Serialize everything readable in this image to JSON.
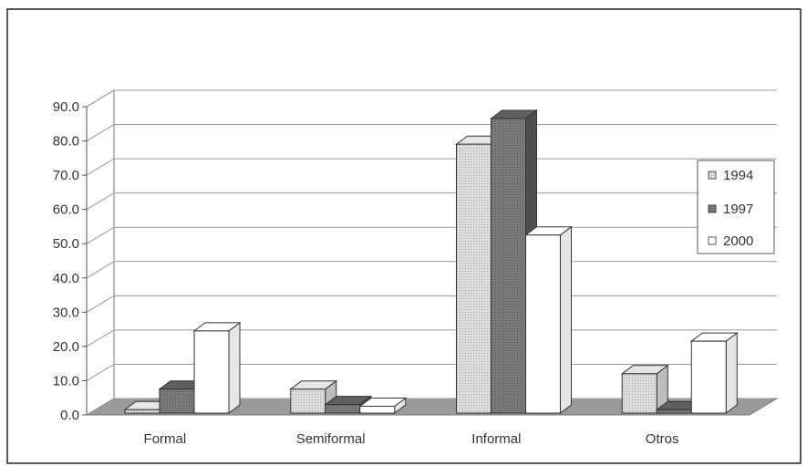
{
  "chart_data": {
    "type": "bar",
    "categories": [
      "Formal",
      "Semiformal",
      "Informal",
      "Otros"
    ],
    "series": [
      {
        "name": "1994",
        "values": [
          1.0,
          7.0,
          78.5,
          11.5
        ],
        "color": "#d4d4d4"
      },
      {
        "name": "1997",
        "values": [
          7.0,
          2.5,
          86.0,
          1.0
        ],
        "color": "#777777"
      },
      {
        "name": "2000",
        "values": [
          24.0,
          2.0,
          52.0,
          21.0
        ],
        "color": "#ffffff"
      }
    ],
    "y_ticks": [
      "0.0",
      "10.0",
      "20.0",
      "30.0",
      "40.0",
      "50.0",
      "60.0",
      "70.0",
      "80.0",
      "90.0"
    ],
    "ylim": [
      0,
      90
    ],
    "grid": true,
    "legend_position": "right",
    "style": "3d-clustered-column"
  }
}
